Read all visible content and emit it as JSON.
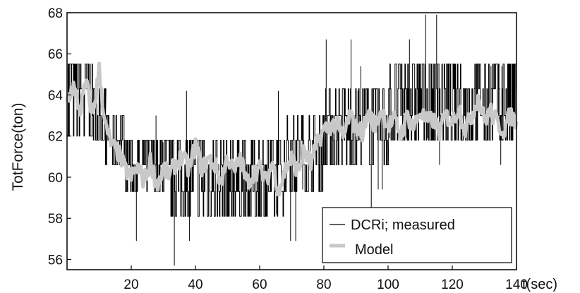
{
  "chart_data": {
    "type": "line",
    "xlabel": "t(sec)",
    "ylabel": "TotForce(ton)",
    "xlim": [
      0,
      140
    ],
    "ylim": [
      55.5,
      68
    ],
    "xticks": [
      20,
      40,
      60,
      80,
      100,
      120,
      140
    ],
    "yticks": [
      56,
      58,
      60,
      62,
      64,
      66,
      68
    ],
    "grid": false,
    "legend_position": "bottom-right",
    "series": [
      {
        "name": "DCRi; measured",
        "color": "#000000",
        "style": "quantized measurement, switches rapidly between adjacent levels",
        "segments": [
          {
            "x_range": [
              0,
              4
            ],
            "levels": [
              62.0,
              64.3,
              65.5
            ]
          },
          {
            "x_range": [
              4,
              8
            ],
            "levels": [
              62.0,
              64.3,
              65.5
            ]
          },
          {
            "x_range": [
              8,
              12
            ],
            "levels": [
              61.8,
              63.0,
              64.3
            ]
          },
          {
            "x_range": [
              12,
              18
            ],
            "levels": [
              60.6,
              61.8,
              63.0
            ]
          },
          {
            "x_range": [
              18,
              30
            ],
            "levels": [
              59.3,
              60.6,
              61.8
            ]
          },
          {
            "x_range": [
              30,
              68
            ],
            "levels": [
              58.1,
              59.3,
              60.6,
              61.8
            ]
          },
          {
            "x_range": [
              68,
              80
            ],
            "levels": [
              59.3,
              60.6,
              61.8,
              63.0
            ]
          },
          {
            "x_range": [
              80,
              100
            ],
            "levels": [
              60.6,
              61.8,
              63.0,
              64.3
            ]
          },
          {
            "x_range": [
              100,
              140
            ],
            "levels": [
              61.8,
              63.0,
              64.3,
              65.5
            ]
          }
        ]
      },
      {
        "name": "Model",
        "color": "#c8c8c8",
        "x": [
          0,
          2,
          4,
          6,
          8,
          10,
          12,
          14,
          16,
          18,
          20,
          22,
          24,
          26,
          28,
          30,
          32,
          34,
          36,
          38,
          40,
          42,
          44,
          46,
          48,
          50,
          52,
          54,
          56,
          58,
          60,
          62,
          64,
          66,
          68,
          70,
          72,
          74,
          76,
          78,
          80,
          82,
          84,
          86,
          88,
          90,
          92,
          94,
          96,
          98,
          100,
          102,
          104,
          106,
          108,
          110,
          112,
          114,
          116,
          118,
          120,
          122,
          124,
          126,
          128,
          130,
          132,
          134,
          136,
          138,
          140
        ],
        "y": [
          63.8,
          64.4,
          63.2,
          64.6,
          63.0,
          65.2,
          62.4,
          61.5,
          61.2,
          60.4,
          60.0,
          60.5,
          59.8,
          60.8,
          59.6,
          60.4,
          60.1,
          60.7,
          61.0,
          60.3,
          61.6,
          60.4,
          60.9,
          60.6,
          59.8,
          61.0,
          60.2,
          60.9,
          59.7,
          60.2,
          60.4,
          59.8,
          60.7,
          59.3,
          60.4,
          60.9,
          60.3,
          61.3,
          60.6,
          61.7,
          62.3,
          62.5,
          62.6,
          61.9,
          63.0,
          62.4,
          62.2,
          63.1,
          62.5,
          63.3,
          62.5,
          62.8,
          62.1,
          63.0,
          62.4,
          63.2,
          62.7,
          62.8,
          62.2,
          63.0,
          62.7,
          63.4,
          62.3,
          63.0,
          63.9,
          62.8,
          63.2,
          62.6,
          62.3,
          63.0,
          62.7
        ]
      }
    ],
    "legend": [
      "DCRi; measured",
      "Model"
    ]
  }
}
